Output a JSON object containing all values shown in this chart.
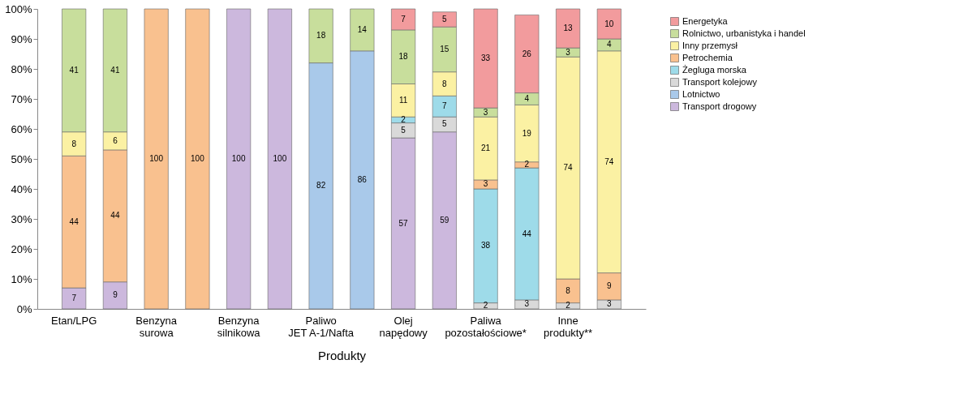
{
  "chart_data": {
    "type": "bar",
    "stacked": true,
    "xlabel": "Produkty",
    "categories": [
      "Etan/LPG",
      null,
      "Benzyna\nsurowa",
      null,
      "Benzyna\nsilnikowa",
      null,
      "Paliwo\nJET A-1/Nafta",
      null,
      "Olej\nnapędowy",
      null,
      "Paliwa\npozostałościowe*",
      null,
      "Inne\nprodukty**",
      null
    ],
    "series": [
      {
        "name": "Transport drogowy",
        "color": "#ccb8dd",
        "values": [
          7,
          9,
          null,
          null,
          100,
          100,
          null,
          null,
          57,
          59,
          null,
          null,
          null,
          null
        ]
      },
      {
        "name": "Lotnictwo",
        "color": "#a9c9ea",
        "values": [
          null,
          null,
          null,
          null,
          null,
          null,
          82,
          86,
          null,
          null,
          null,
          null,
          null,
          null
        ]
      },
      {
        "name": "Transport kolejowy",
        "color": "#d9d9d9",
        "values": [
          null,
          null,
          null,
          null,
          null,
          null,
          null,
          null,
          5,
          5,
          2,
          3,
          2,
          3
        ]
      },
      {
        "name": "Żegluga morska",
        "color": "#9edbe9",
        "values": [
          null,
          null,
          null,
          null,
          null,
          null,
          null,
          null,
          2,
          7,
          38,
          44,
          null,
          null
        ]
      },
      {
        "name": "Petrochemia",
        "color": "#f9c18f",
        "values": [
          44,
          44,
          100,
          100,
          null,
          null,
          null,
          null,
          null,
          null,
          3,
          2,
          8,
          9
        ]
      },
      {
        "name": "Inny przemysł",
        "color": "#fbf1a3",
        "values": [
          8,
          6,
          null,
          null,
          null,
          null,
          null,
          null,
          11,
          8,
          21,
          19,
          74,
          74
        ]
      },
      {
        "name": "Rolnictwo, urbanistyka i handel",
        "color": "#c8de9c",
        "values": [
          41,
          41,
          null,
          null,
          null,
          null,
          18,
          14,
          18,
          15,
          3,
          4,
          3,
          4
        ]
      },
      {
        "name": "Energetyka",
        "color": "#f29b9d",
        "values": [
          null,
          null,
          null,
          null,
          null,
          null,
          null,
          null,
          7,
          5,
          33,
          26,
          13,
          10
        ]
      }
    ],
    "ylim": [
      0,
      100
    ],
    "yticks": [
      {
        "value": 0,
        "label": "0%"
      },
      {
        "value": 10,
        "label": "10%"
      },
      {
        "value": 20,
        "label": "20%"
      },
      {
        "value": 30,
        "label": "30%"
      },
      {
        "value": 40,
        "label": "40%"
      },
      {
        "value": 50,
        "label": "50%"
      },
      {
        "value": 60,
        "label": "60%"
      },
      {
        "value": 70,
        "label": "70%"
      },
      {
        "value": 80,
        "label": "80%"
      },
      {
        "value": 90,
        "label": "90%"
      },
      {
        "value": 100,
        "label": "100%"
      }
    ],
    "data_labels": true,
    "legend": "right",
    "grid": false
  }
}
